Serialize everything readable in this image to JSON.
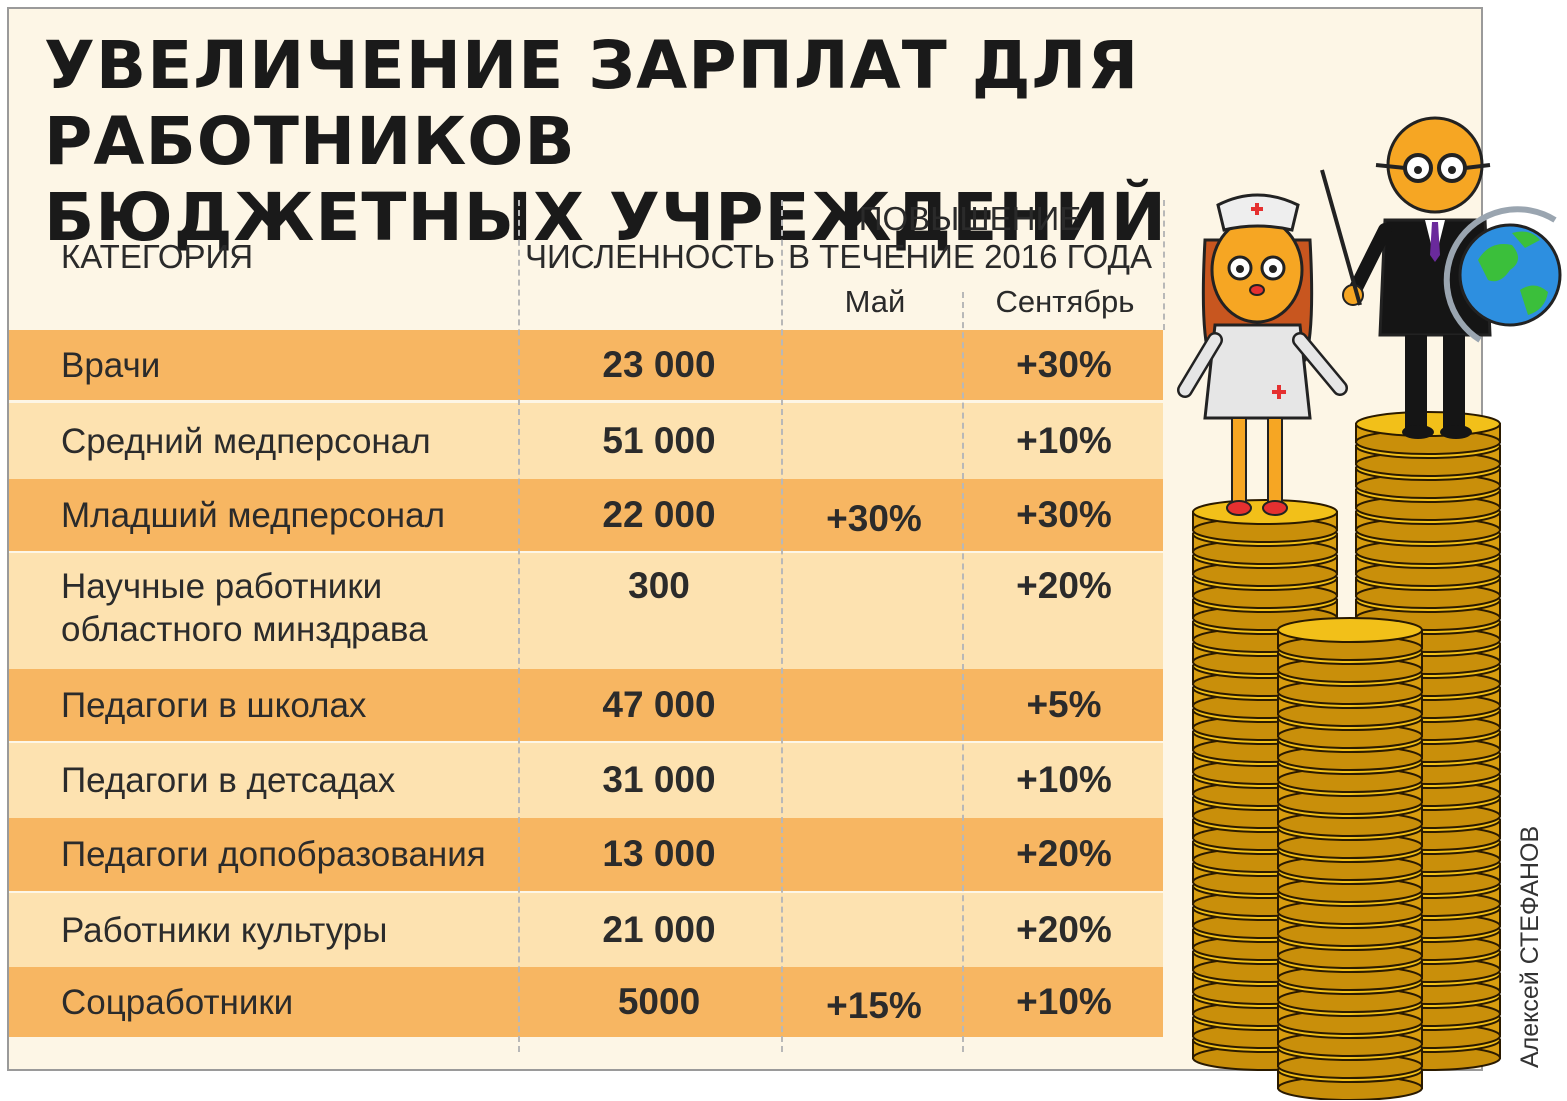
{
  "title": {
    "line1": "УВЕЛИЧЕНИЕ ЗАРПЛАТ ДЛЯ РАБОТНИКОВ",
    "line2": "БЮДЖЕТНЫХ УЧРЕЖДЕНИЙ"
  },
  "headers": {
    "category": "КАТЕГОРИЯ",
    "count": "ЧИСЛЕННОСТЬ",
    "increase_line1": "ПОВЫШЕНИЕ",
    "increase_line2": "В ТЕЧЕНИЕ 2016 ГОДА",
    "may": "Май",
    "september": "Сентябрь"
  },
  "chart_data": {
    "type": "table",
    "title": "УВЕЛИЧЕНИЕ ЗАРПЛАТ ДЛЯ РАБОТНИКОВ БЮДЖЕТНЫХ УЧРЕЖДЕНИЙ",
    "columns": [
      "КАТЕГОРИЯ",
      "ЧИСЛЕННОСТЬ",
      "Май",
      "Сентябрь"
    ],
    "rows": [
      {
        "category": "Врачи",
        "count": "23 000",
        "may": "",
        "september": "+30%"
      },
      {
        "category": "Средний медперсонал",
        "count": "51 000",
        "may": "",
        "september": "+10%"
      },
      {
        "category": "Младший медперсонал",
        "count": "22 000",
        "may": "+30%",
        "september": "+30%"
      },
      {
        "category": "Научные работники областного  минздрава",
        "category_line1": "Научные работники",
        "category_line2": "областного  минздрава",
        "count": "300",
        "may": "",
        "september": "+20%"
      },
      {
        "category": "Педагоги в школах",
        "count": "47 000",
        "may": "",
        "september": "+5%"
      },
      {
        "category": "Педагоги в детсадах",
        "count": "31 000",
        "may": "",
        "september": "+10%"
      },
      {
        "category": "Педагоги допобразования",
        "count": "13 000",
        "may": "",
        "september": "+20%"
      },
      {
        "category": "Работники культуры",
        "count": "21 000",
        "may": "",
        "september": "+20%"
      },
      {
        "category": "Соцработники",
        "count": "5000",
        "may": "+15%",
        "september": "+10%"
      }
    ]
  },
  "credit": "Алексей СТЕФАНОВ",
  "illustration": {
    "figures": [
      "nurse-figure",
      "teacher-figure",
      "globe-icon"
    ],
    "colors": {
      "coin": "#f2c019",
      "coin_edge": "#c98f0a",
      "skin": "#f6a623",
      "row_dark": "#f7b662",
      "row_light": "#fde2b0"
    }
  }
}
